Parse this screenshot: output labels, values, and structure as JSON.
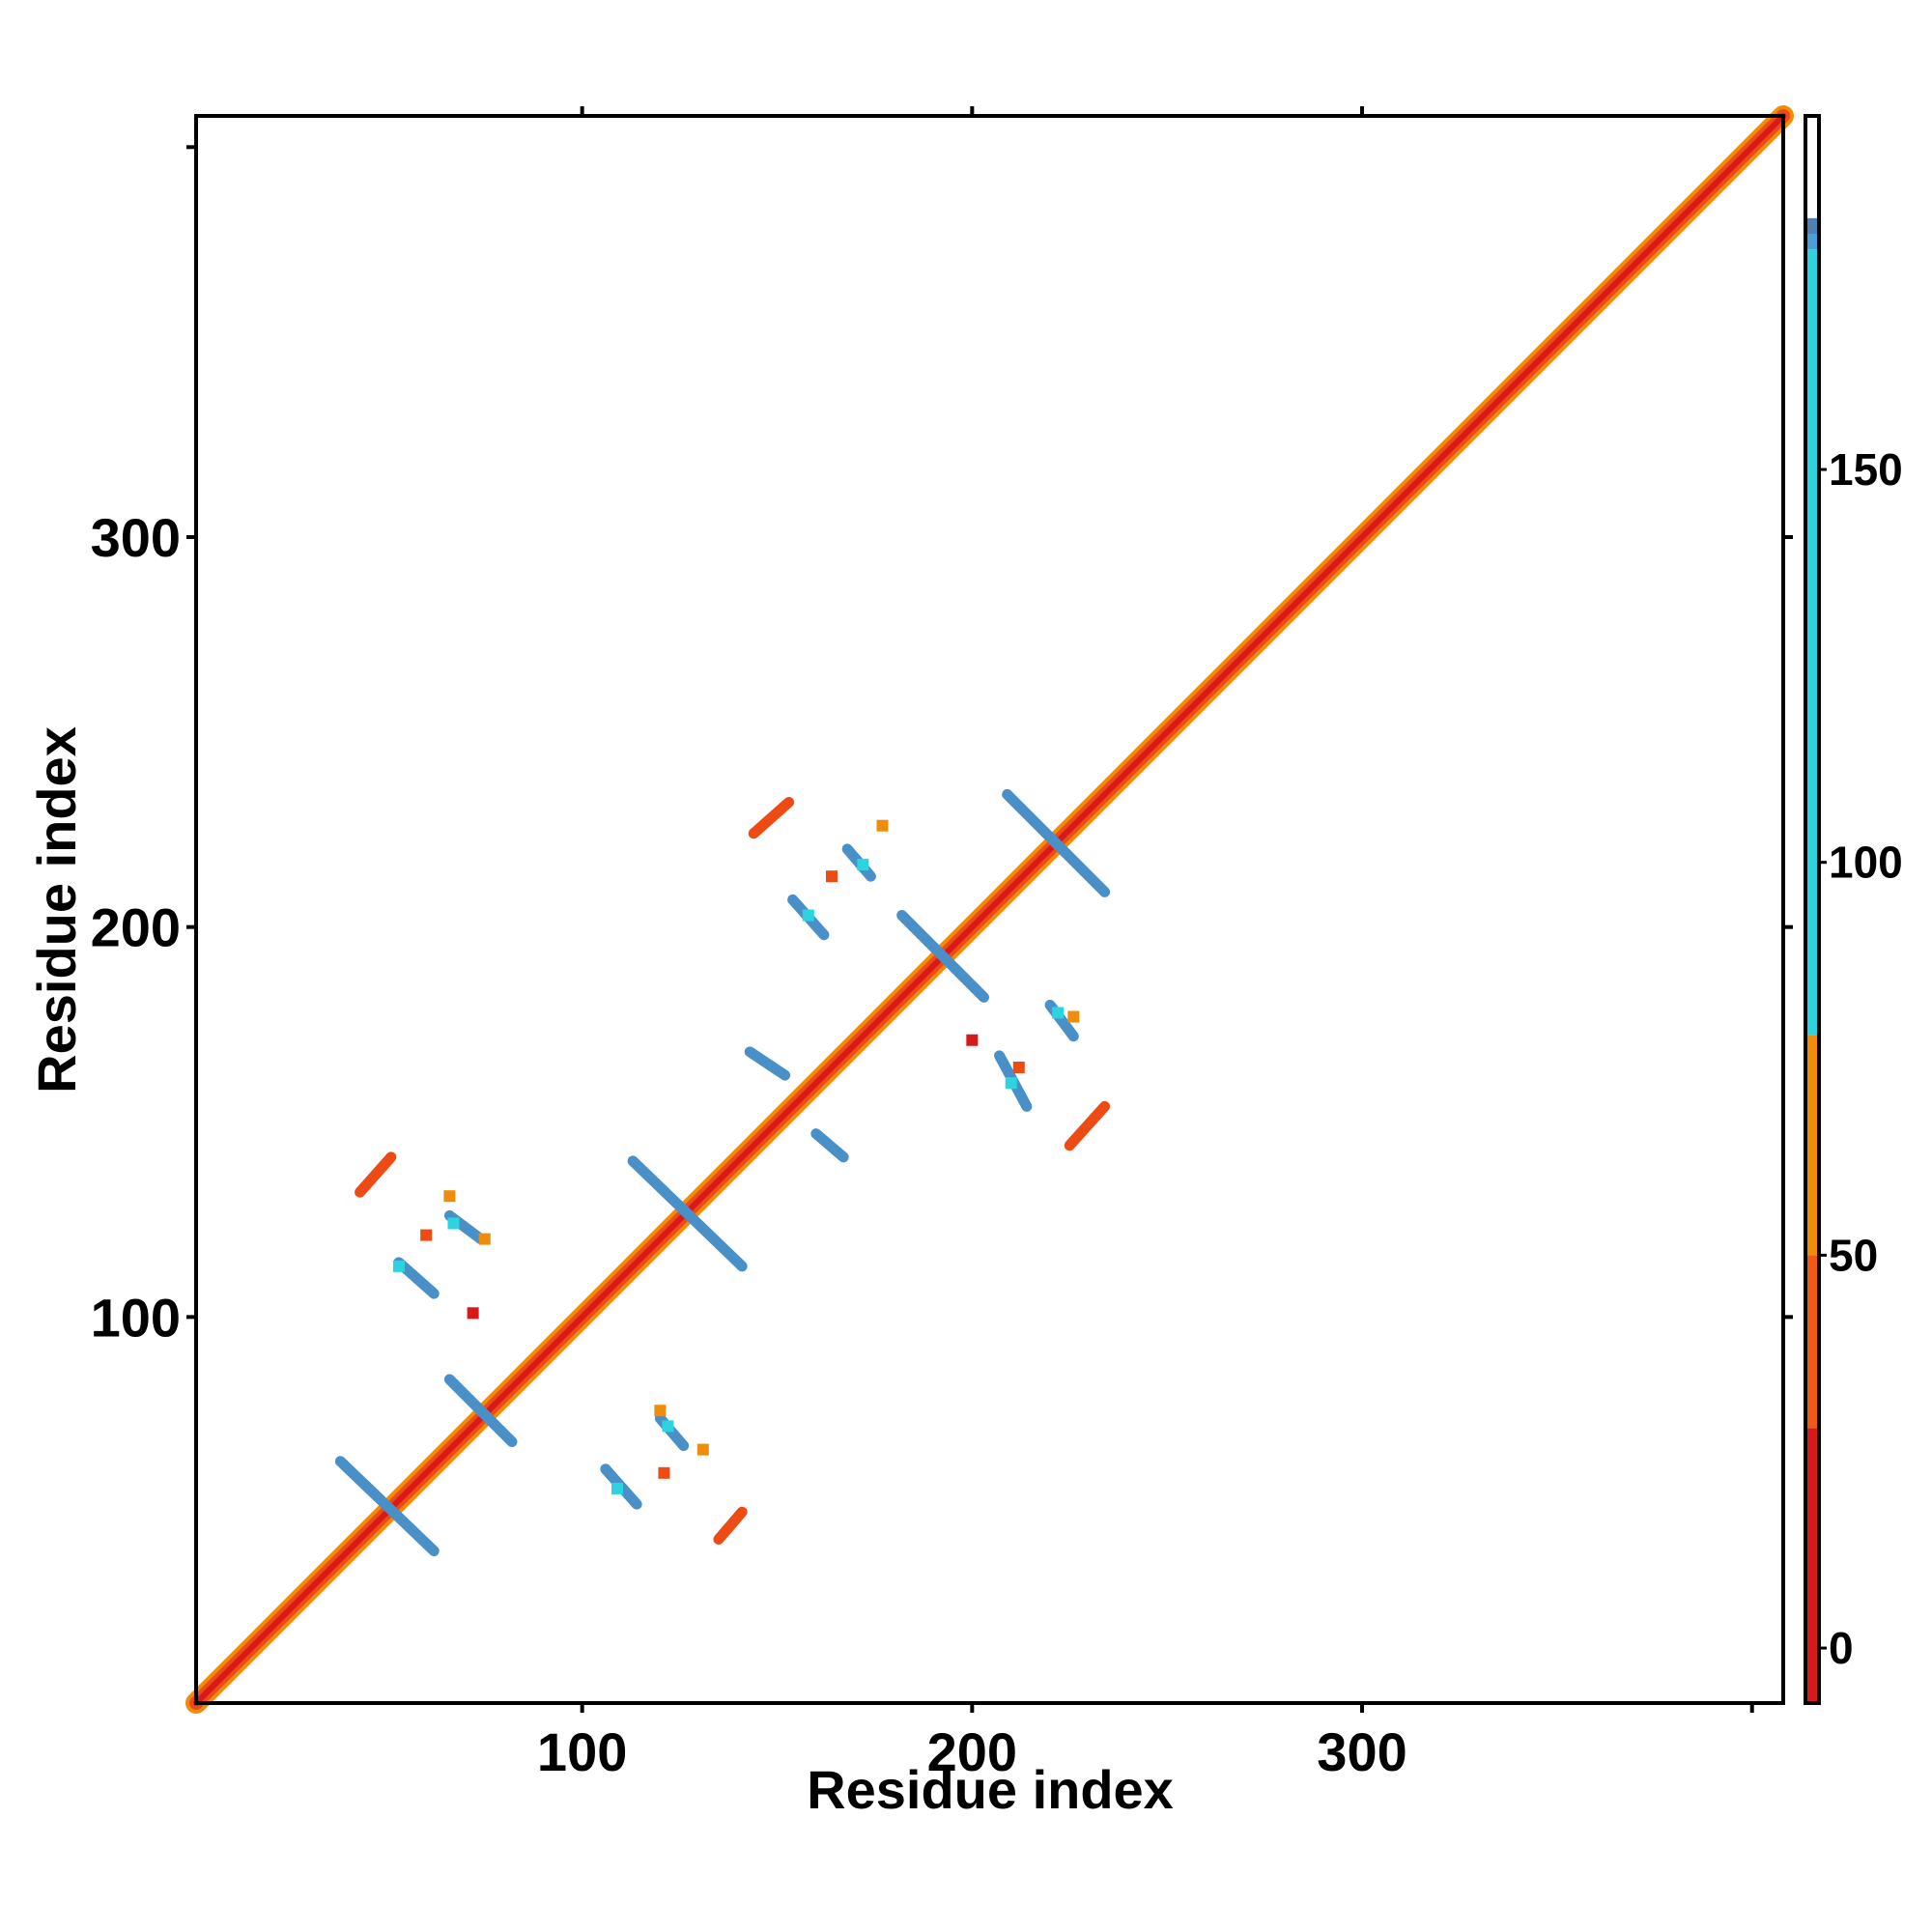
{
  "chart_data": {
    "type": "heatmap",
    "title": "",
    "xlabel": "Residue index",
    "ylabel": "Residue index",
    "xlim": [
      1,
      408
    ],
    "ylim": [
      1,
      408
    ],
    "x_ticks": [
      100,
      200,
      300
    ],
    "y_ticks": [
      100,
      200,
      300
    ],
    "grid": false,
    "colorbar": {
      "range": [
        -7,
        195
      ],
      "ticks": [
        0,
        50,
        100,
        150
      ],
      "bands": [
        {
          "from": -7,
          "to": 28,
          "color": "#d7191c"
        },
        {
          "from": 28,
          "to": 50,
          "color": "#f05a14"
        },
        {
          "from": 50,
          "to": 78,
          "color": "#f08c0a"
        },
        {
          "from": 78,
          "to": 178,
          "color": "#2ed3e0"
        },
        {
          "from": 178,
          "to": 180,
          "color": "#4a9fd8"
        },
        {
          "from": 180,
          "to": 182,
          "color": "#4e7fb5"
        },
        {
          "from": 182,
          "to": 195,
          "color": "#ffffff"
        }
      ]
    },
    "series": [
      {
        "kind": "diagonal",
        "from": 1,
        "to": 408
      },
      {
        "kind": "band",
        "color": "#4a90c8",
        "x1": 66,
        "y1": 84,
        "x2": 82,
        "y2": 68
      },
      {
        "kind": "band",
        "color": "#4a90c8",
        "x1": 38,
        "y1": 63,
        "x2": 62,
        "y2": 40
      },
      {
        "kind": "band",
        "color": "#4a90c8",
        "x1": 113,
        "y1": 140,
        "x2": 141,
        "y2": 113
      },
      {
        "kind": "band",
        "color": "#4a90c8",
        "x1": 209,
        "y1": 234,
        "x2": 234,
        "y2": 209
      },
      {
        "kind": "band",
        "color": "#4a90c8",
        "x1": 182,
        "y1": 203,
        "x2": 203,
        "y2": 182
      },
      {
        "kind": "band",
        "color": "#4a90c8",
        "x1": 143,
        "y1": 168,
        "x2": 152,
        "y2": 162
      },
      {
        "kind": "band",
        "color": "#4a90c8",
        "x1": 160,
        "y1": 147,
        "x2": 167,
        "y2": 141
      },
      {
        "kind": "band",
        "color": "#4a90c8",
        "x1": 53,
        "y1": 114,
        "x2": 62,
        "y2": 106
      },
      {
        "kind": "band",
        "color": "#4a90c8",
        "x1": 66,
        "y1": 126,
        "x2": 74,
        "y2": 120
      },
      {
        "kind": "band",
        "color": "#4a90c8",
        "x1": 106,
        "y1": 61,
        "x2": 114,
        "y2": 52
      },
      {
        "kind": "band",
        "color": "#4a90c8",
        "x1": 120,
        "y1": 74,
        "x2": 126,
        "y2": 67
      },
      {
        "kind": "band",
        "color": "#4a90c8",
        "x1": 154,
        "y1": 207,
        "x2": 162,
        "y2": 198
      },
      {
        "kind": "band",
        "color": "#4a90c8",
        "x1": 168,
        "y1": 220,
        "x2": 174,
        "y2": 213
      },
      {
        "kind": "band",
        "color": "#4a90c8",
        "x1": 207,
        "y1": 167,
        "x2": 214,
        "y2": 154
      },
      {
        "kind": "band",
        "color": "#4a90c8",
        "x1": 220,
        "y1": 180,
        "x2": 226,
        "y2": 172
      },
      {
        "kind": "band",
        "color": "#ee4a14",
        "x1": 43,
        "y1": 132,
        "x2": 51,
        "y2": 141
      },
      {
        "kind": "band",
        "color": "#ee4a14",
        "x1": 135,
        "y1": 43,
        "x2": 141,
        "y2": 50
      },
      {
        "kind": "band",
        "color": "#ee4a14",
        "x1": 144,
        "y1": 224,
        "x2": 153,
        "y2": 232
      },
      {
        "kind": "band",
        "color": "#ee4a14",
        "x1": 225,
        "y1": 144,
        "x2": 234,
        "y2": 154
      },
      {
        "kind": "patch",
        "color": "#2ed3e0",
        "x": 53,
        "y": 113
      },
      {
        "kind": "patch",
        "color": "#2ed3e0",
        "x": 67,
        "y": 124
      },
      {
        "kind": "patch",
        "color": "#2ed3e0",
        "x": 109,
        "y": 56
      },
      {
        "kind": "patch",
        "color": "#2ed3e0",
        "x": 122,
        "y": 72
      },
      {
        "kind": "patch",
        "color": "#2ed3e0",
        "x": 158,
        "y": 203
      },
      {
        "kind": "patch",
        "color": "#2ed3e0",
        "x": 172,
        "y": 216
      },
      {
        "kind": "patch",
        "color": "#2ed3e0",
        "x": 210,
        "y": 160
      },
      {
        "kind": "patch",
        "color": "#2ed3e0",
        "x": 222,
        "y": 178
      },
      {
        "kind": "patch",
        "color": "#f08c0a",
        "x": 75,
        "y": 120
      },
      {
        "kind": "patch",
        "color": "#ee4a14",
        "x": 60,
        "y": 121
      },
      {
        "kind": "patch",
        "color": "#ee4a14",
        "x": 121,
        "y": 60
      },
      {
        "kind": "patch",
        "color": "#ee4a14",
        "x": 164,
        "y": 213
      },
      {
        "kind": "patch",
        "color": "#ee4a14",
        "x": 212,
        "y": 164
      },
      {
        "kind": "patch",
        "color": "#f08c0a",
        "x": 120,
        "y": 76
      },
      {
        "kind": "patch",
        "color": "#f08c0a",
        "x": 66,
        "y": 131
      },
      {
        "kind": "patch",
        "color": "#f08c0a",
        "x": 131,
        "y": 66
      },
      {
        "kind": "patch",
        "color": "#f08c0a",
        "x": 177,
        "y": 226
      },
      {
        "kind": "patch",
        "color": "#f08c0a",
        "x": 226,
        "y": 177
      },
      {
        "kind": "patch",
        "color": "#d7191c",
        "x": 200,
        "y": 171
      },
      {
        "kind": "patch",
        "color": "#d7191c",
        "x": 72,
        "y": 101
      }
    ]
  }
}
